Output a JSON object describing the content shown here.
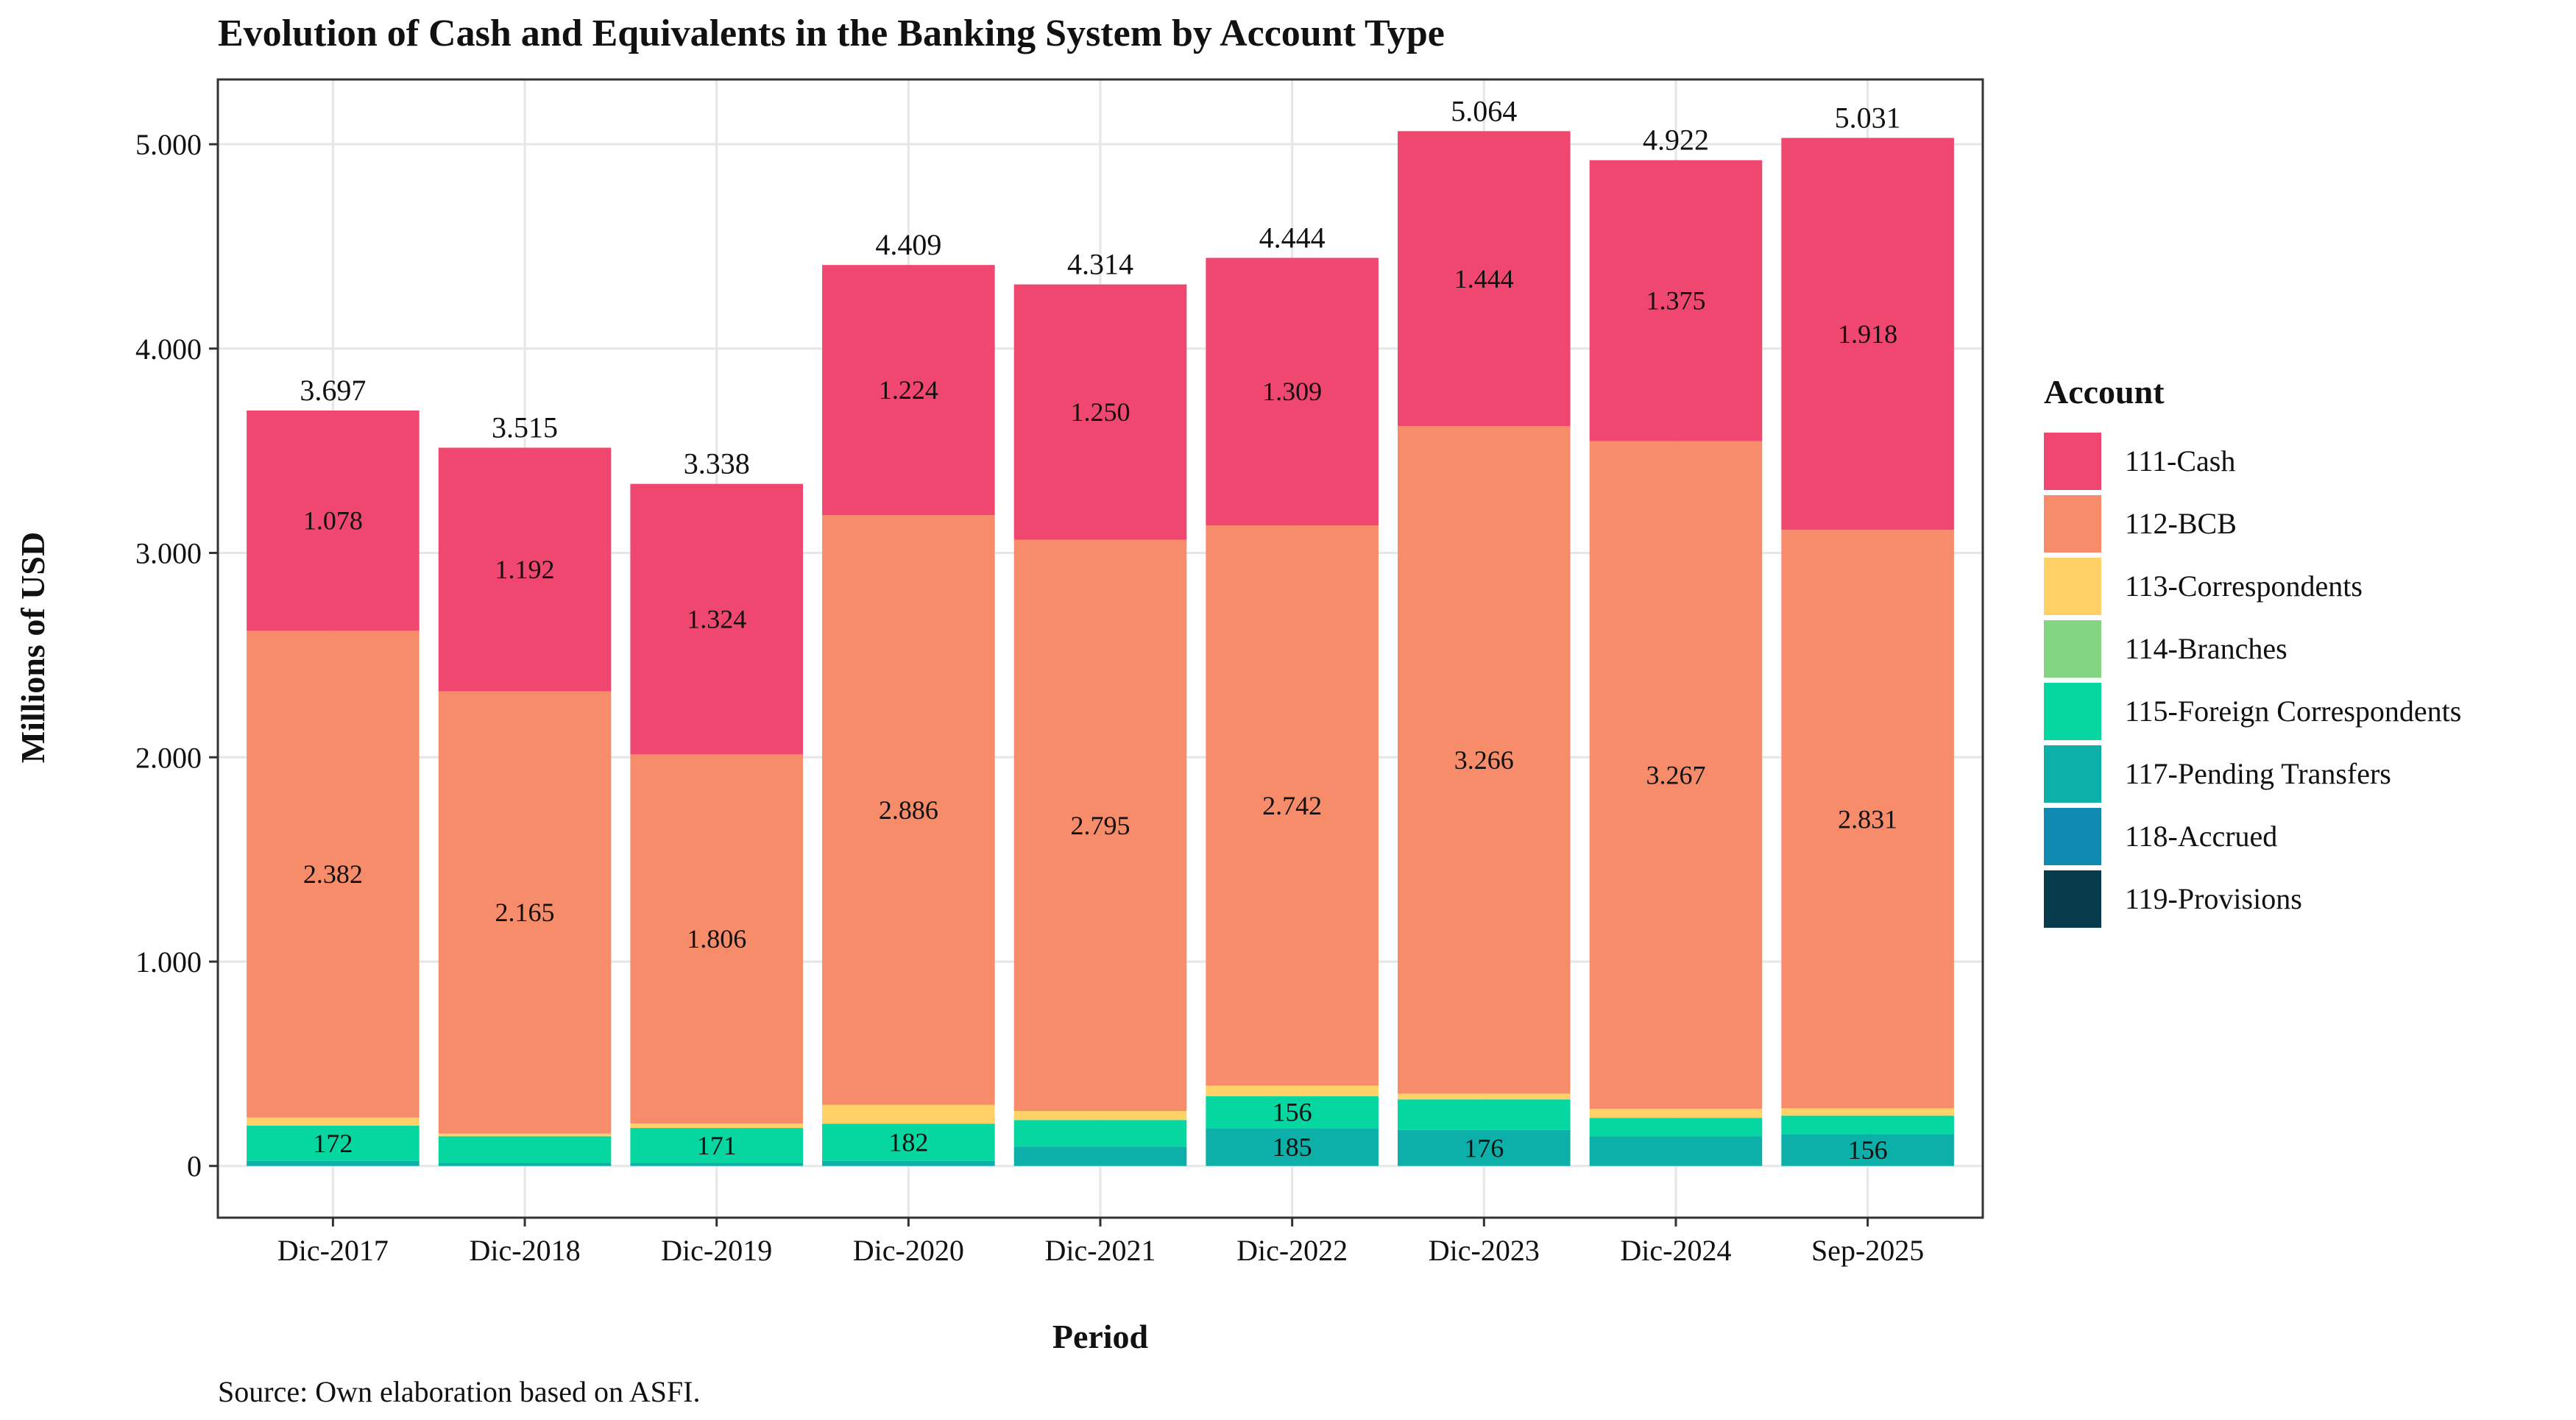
{
  "chart_data": {
    "type": "stacked_bar",
    "title": "Evolution of Cash and Equivalents in the Banking System by Account Type",
    "x_label": "Period",
    "y_label": "Millions of USD",
    "source": "Source: Own elaboration based on ASFI.",
    "legend_title": "Account",
    "legend_position": "right",
    "grid": true,
    "categories": [
      "Dic-2017",
      "Dic-2018",
      "Dic-2019",
      "Dic-2020",
      "Dic-2021",
      "Dic-2022",
      "Dic-2023",
      "Dic-2024",
      "Sep-2025"
    ],
    "ylim": [
      -253,
      5317
    ],
    "yticks": [
      0,
      {
        "value": 1000,
        "label": "1.000"
      },
      {
        "value": 2000,
        "label": "2.000"
      },
      {
        "value": 3000,
        "label": "3.000"
      },
      {
        "value": 4000,
        "label": "4.000"
      },
      {
        "value": 5000,
        "label": "5.000"
      }
    ],
    "totals": {
      "values": [
        3697,
        3515,
        3338,
        4409,
        4314,
        4444,
        5064,
        4922,
        5031
      ],
      "value_labels": [
        "3.697",
        "3.515",
        "3.338",
        "4.409",
        "4.314",
        "4.444",
        "5.064",
        "4.922",
        "5.031"
      ]
    },
    "series": [
      {
        "name": "119-Provisions",
        "color": "#073B4C",
        "values": [
          0,
          0,
          0,
          0,
          0,
          0,
          0,
          0,
          0
        ]
      },
      {
        "name": "118-Accrued",
        "color": "#118AB2",
        "values": [
          0,
          0,
          0,
          0,
          0,
          0,
          0,
          0,
          0
        ]
      },
      {
        "name": "117-Pending Transfers",
        "color": "#0CB0A9",
        "values": [
          25,
          15,
          15,
          25,
          95,
          185,
          176,
          145,
          156
        ],
        "value_labels": [
          null,
          null,
          null,
          null,
          null,
          "185",
          "176",
          null,
          "156"
        ]
      },
      {
        "name": "115-Foreign Correspondents",
        "color": "#06D6A0",
        "values": [
          172,
          130,
          171,
          182,
          130,
          156,
          150,
          90,
          90
        ],
        "value_labels": [
          "172",
          null,
          "171",
          "182",
          null,
          "156",
          null,
          null,
          null
        ]
      },
      {
        "name": "114-Branches",
        "color": "#83D483",
        "values": [
          0,
          0,
          0,
          0,
          0,
          0,
          0,
          0,
          0
        ]
      },
      {
        "name": "113-Correspondents",
        "color": "#FFD166",
        "values": [
          40,
          13,
          22,
          92,
          44,
          52,
          28,
          45,
          36
        ]
      },
      {
        "name": "112-BCB",
        "color": "#F78C6B",
        "values": [
          2382,
          2165,
          1806,
          2886,
          2795,
          2742,
          3266,
          3267,
          2831
        ],
        "value_labels": [
          "2.382",
          "2.165",
          "1.806",
          "2.886",
          "2.795",
          "2.742",
          "3.266",
          "3.267",
          "2.831"
        ]
      },
      {
        "name": "111-Cash",
        "color": "#EF476F",
        "values": [
          1078,
          1192,
          1324,
          1224,
          1250,
          1309,
          1444,
          1375,
          1918
        ],
        "value_labels": [
          "1.078",
          "1.192",
          "1.324",
          "1.224",
          "1.250",
          "1.309",
          "1.444",
          "1.375",
          "1.918"
        ]
      }
    ]
  }
}
